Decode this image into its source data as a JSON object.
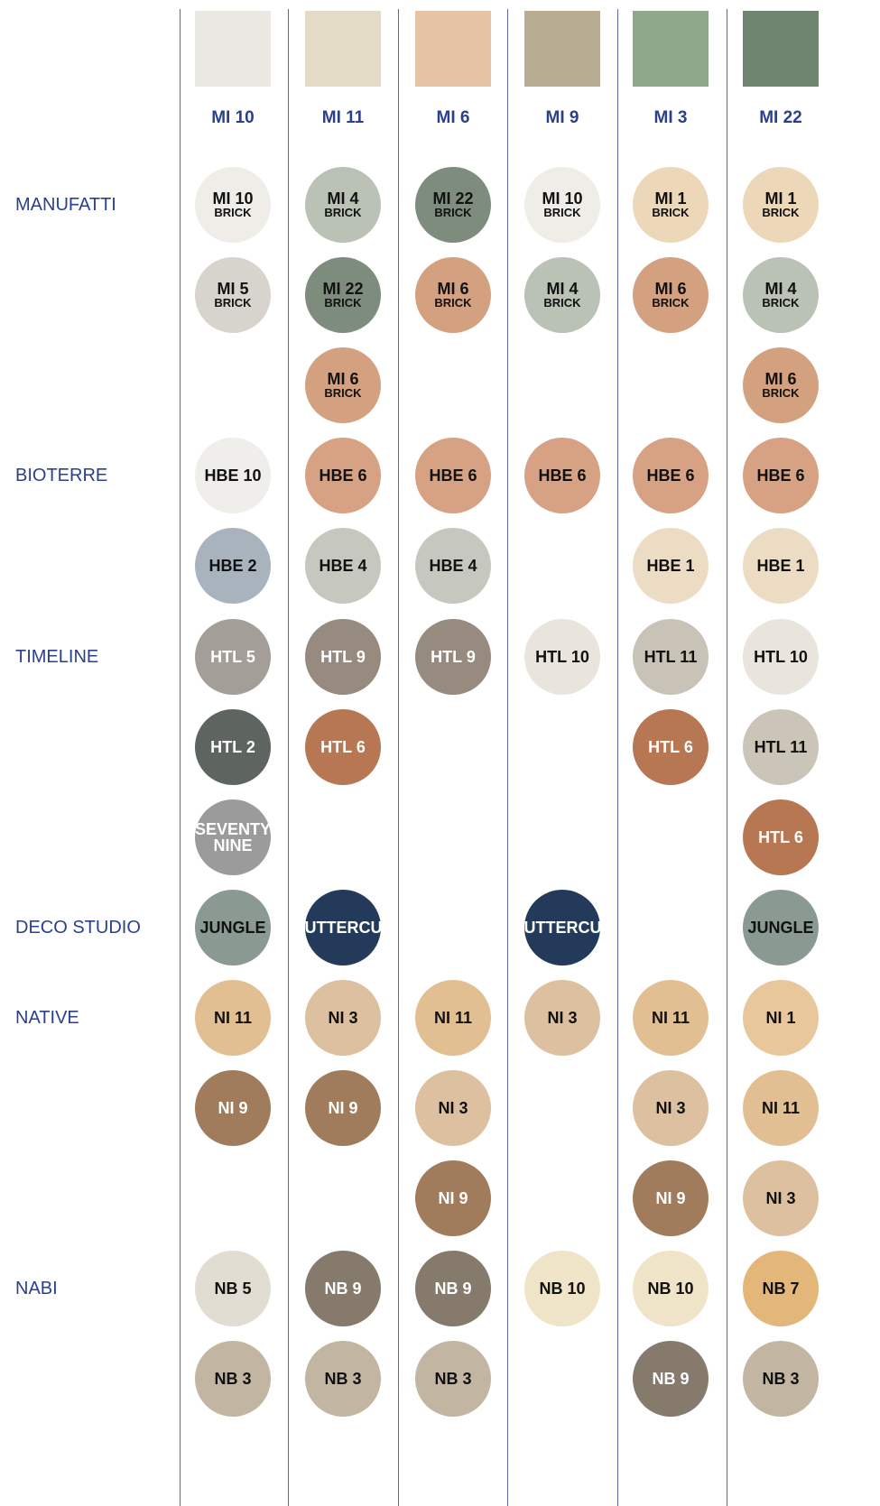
{
  "columns": [
    {
      "label": "MI 10",
      "color": "#e9e8e3"
    },
    {
      "label": "MI 11",
      "color": "#e4dbc7"
    },
    {
      "label": "MI 6",
      "color": "#e4c4a5"
    },
    {
      "label": "MI 9",
      "color": "#b8ad93"
    },
    {
      "label": "MI 3",
      "color": "#8ea88a"
    },
    {
      "label": "MI 22",
      "color": "#6f856f"
    }
  ],
  "groups": [
    {
      "label": "MANUFATTI",
      "rows": [
        [
          {
            "label": "MI 10",
            "sub": "BRICK",
            "color": "#efede8"
          },
          {
            "label": "MI 4",
            "sub": "BRICK",
            "color": "#b9c2b4"
          },
          {
            "label": "MI 22",
            "sub": "BRICK",
            "color": "#7e8c7e"
          },
          {
            "label": "MI 10",
            "sub": "BRICK",
            "color": "#efede8"
          },
          {
            "label": "MI 1",
            "sub": "BRICK",
            "color": "#ecd7b8"
          },
          {
            "label": "MI 1",
            "sub": "BRICK",
            "color": "#ecd7b8"
          }
        ],
        [
          {
            "label": "MI 5",
            "sub": "BRICK",
            "color": "#d7d4ce"
          },
          {
            "label": "MI 22",
            "sub": "BRICK",
            "color": "#7e8c7e"
          },
          {
            "label": "MI 6",
            "sub": "BRICK",
            "color": "#d3a180"
          },
          {
            "label": "MI 4",
            "sub": "BRICK",
            "color": "#b9c2b4"
          },
          {
            "label": "MI 6",
            "sub": "BRICK",
            "color": "#d3a180"
          },
          {
            "label": "MI 4",
            "sub": "BRICK",
            "color": "#b9c2b4"
          }
        ],
        [
          null,
          {
            "label": "MI 6",
            "sub": "BRICK",
            "color": "#d3a180"
          },
          null,
          null,
          null,
          {
            "label": "MI 6",
            "sub": "BRICK",
            "color": "#d3a180"
          }
        ]
      ]
    },
    {
      "label": "BIOTERRE",
      "rows": [
        [
          {
            "label": "HBE 10",
            "color": "#efeeea"
          },
          {
            "label": "HBE 6",
            "color": "#d6a283"
          },
          {
            "label": "HBE 6",
            "color": "#d6a283"
          },
          {
            "label": "HBE 6",
            "color": "#d6a283"
          },
          {
            "label": "HBE 6",
            "color": "#d6a283"
          },
          {
            "label": "HBE 6",
            "color": "#d6a283"
          }
        ],
        [
          {
            "label": "HBE 2",
            "color": "#a9b3be"
          },
          {
            "label": "HBE 4",
            "color": "#c6c8c0"
          },
          {
            "label": "HBE 4",
            "color": "#c6c8c0"
          },
          null,
          {
            "label": "HBE 1",
            "color": "#ecdcc4"
          },
          {
            "label": "HBE 1",
            "color": "#ecdcc4"
          }
        ]
      ]
    },
    {
      "label": "TIMELINE",
      "rows": [
        [
          {
            "label": "HTL 5",
            "color": "#a39e98",
            "text_color": "#ffffff"
          },
          {
            "label": "HTL 9",
            "color": "#978a7e",
            "text_color": "#ffffff"
          },
          {
            "label": "HTL 9",
            "color": "#978a7e",
            "text_color": "#ffffff"
          },
          {
            "label": "HTL 10",
            "color": "#e9e4dc"
          },
          {
            "label": "HTL 11",
            "color": "#c9c2b6"
          },
          {
            "label": "HTL 10",
            "color": "#e9e4dc"
          }
        ],
        [
          {
            "label": "HTL 2",
            "color": "#5e6560",
            "text_color": "#ffffff"
          },
          {
            "label": "HTL 6",
            "color": "#b77753",
            "text_color": "#ffffff"
          },
          null,
          null,
          {
            "label": "HTL 6",
            "color": "#b77753",
            "text_color": "#ffffff"
          },
          {
            "label": "HTL 11",
            "color": "#cbc4b8"
          }
        ],
        [
          {
            "label": "SEVENTY NINE",
            "color": "#9a9b9a",
            "text_color": "#ffffff"
          },
          null,
          null,
          null,
          null,
          {
            "label": "HTL 6",
            "color": "#b77753",
            "text_color": "#ffffff"
          }
        ]
      ]
    },
    {
      "label": "DECO STUDIO",
      "rows": [
        [
          {
            "label": "JUNGLE",
            "color": "#8a9a92"
          },
          {
            "label": "BUTTERCUP",
            "color": "#233a5a",
            "text_color": "#ffffff"
          },
          null,
          {
            "label": "BUTTERCUP",
            "color": "#233a5a",
            "text_color": "#ffffff"
          },
          null,
          {
            "label": "JUNGLE",
            "color": "#8a9a92"
          }
        ]
      ]
    },
    {
      "label": "NATIVE",
      "rows": [
        [
          {
            "label": "NI 11",
            "color": "#e2bf92"
          },
          {
            "label": "NI 3",
            "color": "#dcc0a0"
          },
          {
            "label": "NI 11",
            "color": "#e2bf92"
          },
          {
            "label": "NI 3",
            "color": "#dcc0a0"
          },
          {
            "label": "NI 11",
            "color": "#e2bf92"
          },
          {
            "label": "NI 1",
            "color": "#e8c79c"
          }
        ],
        [
          {
            "label": "NI 9",
            "color": "#a07c5c",
            "text_color": "#ffffff"
          },
          {
            "label": "NI 9",
            "color": "#a07c5c",
            "text_color": "#ffffff"
          },
          {
            "label": "NI 3",
            "color": "#dcc0a0"
          },
          null,
          {
            "label": "NI 3",
            "color": "#dcc0a0"
          },
          {
            "label": "NI 11",
            "color": "#e2bf92"
          }
        ],
        [
          null,
          null,
          {
            "label": "NI 9",
            "color": "#a07c5c",
            "text_color": "#ffffff"
          },
          null,
          {
            "label": "NI 9",
            "color": "#a07c5c",
            "text_color": "#ffffff"
          },
          {
            "label": "NI 3",
            "color": "#dcc0a0"
          }
        ]
      ]
    },
    {
      "label": "NABI",
      "rows": [
        [
          {
            "label": "NB 5",
            "color": "#e2ddd3"
          },
          {
            "label": "NB 9",
            "color": "#857a6c",
            "text_color": "#ffffff"
          },
          {
            "label": "NB 9",
            "color": "#857a6c",
            "text_color": "#ffffff"
          },
          {
            "label": "NB 10",
            "color": "#efe3c8"
          },
          {
            "label": "NB 10",
            "color": "#efe3c8"
          },
          {
            "label": "NB 7",
            "color": "#e3b67a"
          }
        ],
        [
          {
            "label": "NB 3",
            "color": "#c2b5a2"
          },
          {
            "label": "NB 3",
            "color": "#c2b5a2"
          },
          {
            "label": "NB 3",
            "color": "#c2b5a2"
          },
          null,
          {
            "label": "NB 9",
            "color": "#857a6c",
            "text_color": "#ffffff"
          },
          {
            "label": "NB 3",
            "color": "#c2b5a2"
          }
        ]
      ]
    }
  ]
}
